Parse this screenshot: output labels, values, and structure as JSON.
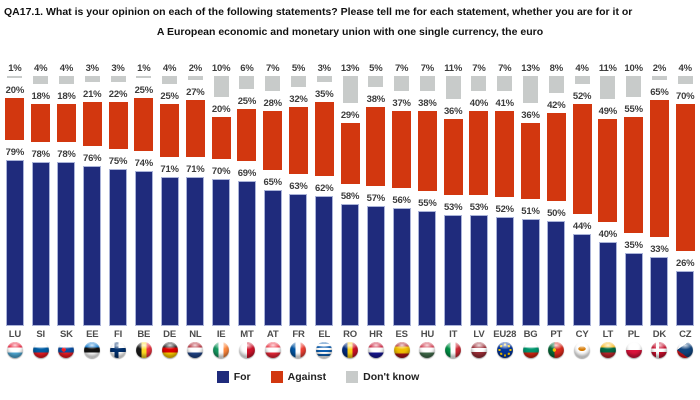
{
  "title": {
    "line1": "QA17.1. What is your opinion on each of the following statements? Please tell me for each statement, whether you are for it or",
    "line2": "A European economic and monetary union with one single currency, the euro"
  },
  "colors": {
    "for": "#1f2b7c",
    "against": "#d2370f",
    "dont_know": "#c8cbca",
    "label_text": "#3c3c3c"
  },
  "legend": [
    {
      "key": "for",
      "label": "For",
      "color": "#1f2b7c"
    },
    {
      "key": "against",
      "label": "Against",
      "color": "#d2370f"
    },
    {
      "key": "dont-know",
      "label": "Don't know",
      "color": "#c8cbca"
    }
  ],
  "chart_data": {
    "type": "bar",
    "stacked": true,
    "unit": "%",
    "ylim": [
      0,
      100
    ],
    "value_labels": true,
    "legend_position": "bottom",
    "grid": false,
    "categories": [
      "LU",
      "SI",
      "SK",
      "EE",
      "FI",
      "BE",
      "DE",
      "NL",
      "IE",
      "MT",
      "AT",
      "FR",
      "EL",
      "RO",
      "HR",
      "ES",
      "HU",
      "IT",
      "LV",
      "EU28",
      "BG",
      "PT",
      "CY",
      "LT",
      "PL",
      "DK",
      "CZ"
    ],
    "series": [
      {
        "key": "for",
        "name": "For",
        "color": "#1f2b7c",
        "values": [
          79,
          78,
          78,
          76,
          75,
          74,
          71,
          71,
          70,
          69,
          65,
          63,
          62,
          58,
          57,
          56,
          55,
          53,
          53,
          52,
          51,
          50,
          44,
          40,
          35,
          33,
          26
        ]
      },
      {
        "key": "against",
        "name": "Against",
        "color": "#d2370f",
        "values": [
          20,
          18,
          18,
          21,
          22,
          25,
          25,
          27,
          20,
          25,
          28,
          32,
          35,
          29,
          38,
          37,
          38,
          36,
          40,
          41,
          36,
          42,
          52,
          49,
          55,
          65,
          70
        ]
      },
      {
        "key": "dont-know",
        "name": "Don't know",
        "color": "#c8cbca",
        "values": [
          1,
          4,
          4,
          3,
          3,
          1,
          4,
          2,
          10,
          6,
          7,
          5,
          3,
          13,
          5,
          7,
          7,
          11,
          7,
          7,
          13,
          8,
          4,
          11,
          10,
          2,
          4
        ]
      }
    ]
  }
}
